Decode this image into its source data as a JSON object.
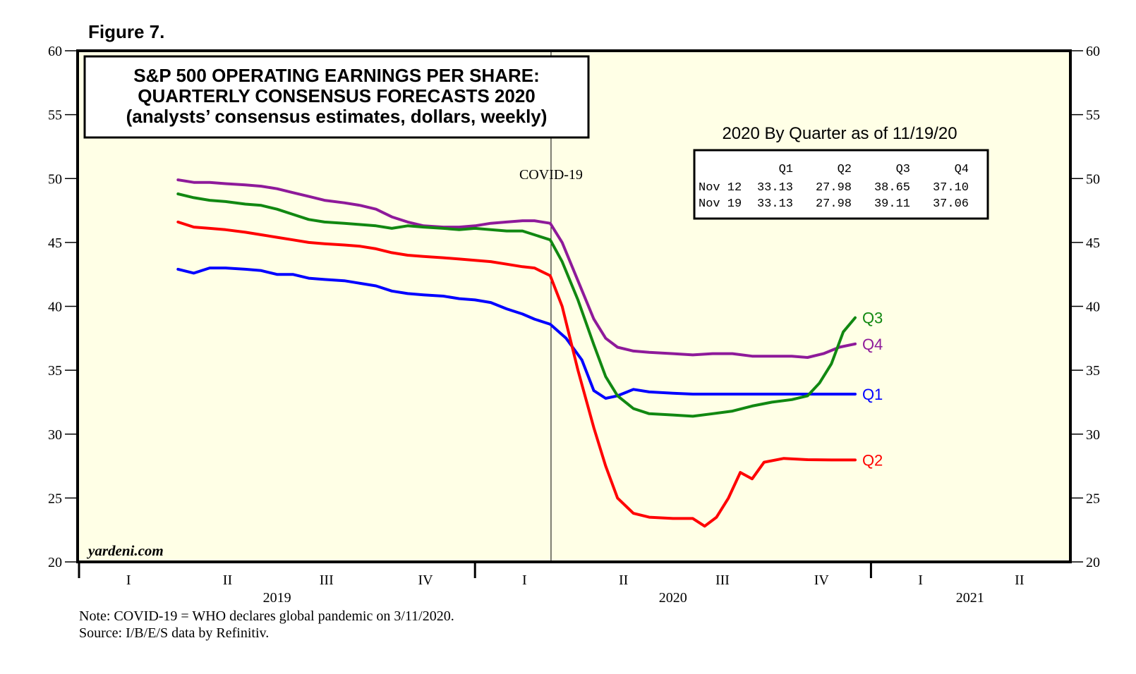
{
  "figure_label": "Figure 7.",
  "watermark": "yardeni.com",
  "note": "Note: COVID-19 = WHO declares global pandemic on 3/11/2020.",
  "source": "Source: I/B/E/S data by Refinitiv.",
  "colors": {
    "background": "#ffffe6",
    "Q1": "#0000ff",
    "Q2": "#ff0000",
    "Q3": "#118811",
    "Q4": "#8e1a9a"
  },
  "chart_data": {
    "type": "line",
    "title_lines": [
      "S&P 500 OPERATING EARNINGS PER SHARE:",
      "QUARTERLY CONSENSUS FORECASTS 2020",
      "(analysts’ consensus estimates, dollars, weekly)"
    ],
    "ylim": [
      20,
      60
    ],
    "yticks": [
      20,
      25,
      30,
      35,
      40,
      45,
      50,
      55,
      60
    ],
    "xlim": [
      2019.0,
      2021.5
    ],
    "x_quarter_labels": [
      {
        "x": 2019.125,
        "label": "I"
      },
      {
        "x": 2019.375,
        "label": "II"
      },
      {
        "x": 2019.625,
        "label": "III"
      },
      {
        "x": 2019.875,
        "label": "IV"
      },
      {
        "x": 2020.125,
        "label": "I"
      },
      {
        "x": 2020.375,
        "label": "II"
      },
      {
        "x": 2020.625,
        "label": "III"
      },
      {
        "x": 2020.875,
        "label": "IV"
      },
      {
        "x": 2021.125,
        "label": "I"
      },
      {
        "x": 2021.375,
        "label": "II"
      }
    ],
    "x_year_labels": [
      {
        "x": 2019.5,
        "label": "2019"
      },
      {
        "x": 2020.5,
        "label": "2020"
      },
      {
        "x": 2021.25,
        "label": "2021"
      }
    ],
    "year_boundaries": [
      2019.0,
      2020.0,
      2021.0
    ],
    "event": {
      "x": 2020.192,
      "label": "COVID-19"
    },
    "series": [
      {
        "name": "Q1",
        "label": "Q1",
        "x": [
          2019.25,
          2019.29,
          2019.33,
          2019.37,
          2019.42,
          2019.46,
          2019.5,
          2019.54,
          2019.58,
          2019.62,
          2019.67,
          2019.71,
          2019.75,
          2019.79,
          2019.83,
          2019.87,
          2019.92,
          2019.96,
          2020.0,
          2020.04,
          2020.08,
          2020.12,
          2020.15,
          2020.19,
          2020.23,
          2020.27,
          2020.3,
          2020.33,
          2020.36,
          2020.4,
          2020.44,
          2020.5,
          2020.55,
          2020.6,
          2020.7,
          2020.8,
          2020.9,
          2020.96
        ],
        "values": [
          42.9,
          42.6,
          43.0,
          43.0,
          42.9,
          42.8,
          42.5,
          42.5,
          42.2,
          42.1,
          42.0,
          41.8,
          41.6,
          41.2,
          41.0,
          40.9,
          40.8,
          40.6,
          40.5,
          40.3,
          39.8,
          39.4,
          39.0,
          38.6,
          37.5,
          35.8,
          33.4,
          32.8,
          33.0,
          33.5,
          33.3,
          33.2,
          33.13,
          33.13,
          33.13,
          33.13,
          33.13,
          33.13
        ]
      },
      {
        "name": "Q2",
        "label": "Q2",
        "x": [
          2019.25,
          2019.29,
          2019.33,
          2019.37,
          2019.42,
          2019.46,
          2019.5,
          2019.54,
          2019.58,
          2019.62,
          2019.67,
          2019.71,
          2019.75,
          2019.79,
          2019.83,
          2019.87,
          2019.92,
          2019.96,
          2020.0,
          2020.04,
          2020.08,
          2020.12,
          2020.15,
          2020.19,
          2020.22,
          2020.26,
          2020.3,
          2020.33,
          2020.36,
          2020.4,
          2020.44,
          2020.5,
          2020.55,
          2020.58,
          2020.61,
          2020.64,
          2020.67,
          2020.7,
          2020.73,
          2020.78,
          2020.84,
          2020.9,
          2020.96
        ],
        "values": [
          46.6,
          46.2,
          46.1,
          46.0,
          45.8,
          45.6,
          45.4,
          45.2,
          45.0,
          44.9,
          44.8,
          44.7,
          44.5,
          44.2,
          44.0,
          43.9,
          43.8,
          43.7,
          43.6,
          43.5,
          43.3,
          43.1,
          43.0,
          42.4,
          40.0,
          35.0,
          30.5,
          27.5,
          25.0,
          23.8,
          23.5,
          23.4,
          23.4,
          22.8,
          23.5,
          25.0,
          27.0,
          26.5,
          27.8,
          28.1,
          28.0,
          27.98,
          27.98
        ]
      },
      {
        "name": "Q3",
        "label": "Q3",
        "x": [
          2019.25,
          2019.29,
          2019.33,
          2019.37,
          2019.42,
          2019.46,
          2019.5,
          2019.54,
          2019.58,
          2019.62,
          2019.67,
          2019.71,
          2019.75,
          2019.79,
          2019.83,
          2019.87,
          2019.92,
          2019.96,
          2020.0,
          2020.04,
          2020.08,
          2020.12,
          2020.15,
          2020.19,
          2020.22,
          2020.26,
          2020.3,
          2020.33,
          2020.36,
          2020.4,
          2020.44,
          2020.5,
          2020.55,
          2020.6,
          2020.65,
          2020.7,
          2020.75,
          2020.8,
          2020.84,
          2020.87,
          2020.9,
          2020.93,
          2020.96
        ],
        "values": [
          48.8,
          48.5,
          48.3,
          48.2,
          48.0,
          47.9,
          47.6,
          47.2,
          46.8,
          46.6,
          46.5,
          46.4,
          46.3,
          46.1,
          46.3,
          46.2,
          46.1,
          46.0,
          46.1,
          46.0,
          45.9,
          45.9,
          45.6,
          45.2,
          43.5,
          40.5,
          37.0,
          34.5,
          33.0,
          32.0,
          31.6,
          31.5,
          31.4,
          31.6,
          31.8,
          32.2,
          32.5,
          32.7,
          33.0,
          34.0,
          35.5,
          38.0,
          39.11
        ]
      },
      {
        "name": "Q4",
        "label": "Q4",
        "x": [
          2019.25,
          2019.29,
          2019.33,
          2019.37,
          2019.42,
          2019.46,
          2019.5,
          2019.54,
          2019.58,
          2019.62,
          2019.67,
          2019.71,
          2019.75,
          2019.79,
          2019.83,
          2019.87,
          2019.92,
          2019.96,
          2020.0,
          2020.04,
          2020.08,
          2020.12,
          2020.15,
          2020.19,
          2020.22,
          2020.26,
          2020.3,
          2020.33,
          2020.36,
          2020.4,
          2020.44,
          2020.5,
          2020.55,
          2020.6,
          2020.65,
          2020.7,
          2020.75,
          2020.8,
          2020.84,
          2020.88,
          2020.92,
          2020.96
        ],
        "values": [
          49.9,
          49.7,
          49.7,
          49.6,
          49.5,
          49.4,
          49.2,
          48.9,
          48.6,
          48.3,
          48.1,
          47.9,
          47.6,
          47.0,
          46.6,
          46.3,
          46.2,
          46.2,
          46.3,
          46.5,
          46.6,
          46.7,
          46.7,
          46.5,
          45.0,
          42.0,
          39.0,
          37.5,
          36.8,
          36.5,
          36.4,
          36.3,
          36.2,
          36.3,
          36.3,
          36.1,
          36.1,
          36.1,
          36.0,
          36.3,
          36.8,
          37.06
        ]
      }
    ],
    "table": {
      "title": "2020 By Quarter as of 11/19/20",
      "columns": [
        "Q1",
        "Q2",
        "Q3",
        "Q4"
      ],
      "rows": [
        {
          "label": "Nov 12",
          "values": [
            "33.13",
            "27.98",
            "38.65",
            "37.10"
          ]
        },
        {
          "label": "Nov 19",
          "values": [
            "33.13",
            "27.98",
            "39.11",
            "37.06"
          ]
        }
      ]
    }
  }
}
